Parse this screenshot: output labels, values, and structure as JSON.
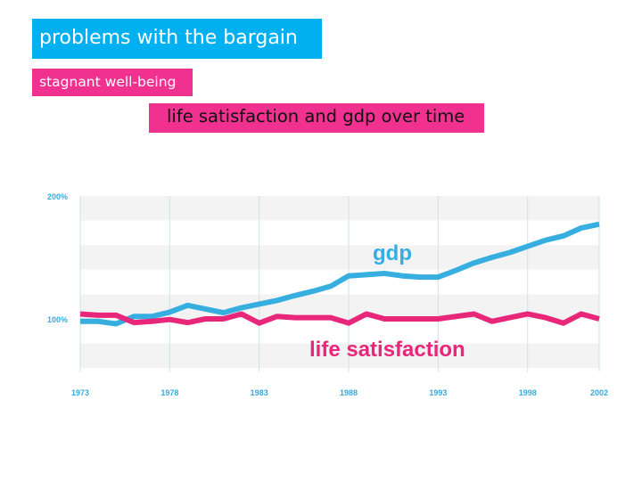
{
  "slide": {
    "title": "problems with the bargain",
    "subtitle": "stagnant well-being",
    "chart_heading": "life satisfaction and gdp over time"
  },
  "colors": {
    "title_bg": "#00b0f0",
    "accent_pink": "#f0318f",
    "gdp": "#36aee0",
    "life_satisfaction": "#e8277a",
    "axis_text": "#3aa9dc"
  },
  "chart_data": {
    "type": "line",
    "title": "life satisfaction and gdp over time",
    "xlabel": "",
    "ylabel": "",
    "xlim": [
      1973,
      2002
    ],
    "ylim": [
      57,
      200
    ],
    "x_ticks": [
      1973,
      1978,
      1983,
      1988,
      1993,
      1998,
      2002
    ],
    "x_tick_labels": [
      "1973",
      "1978",
      "1983",
      "1988",
      "1993",
      "1998",
      "2002"
    ],
    "y_ticks": [
      100,
      200
    ],
    "y_tick_labels": [
      "100%",
      "200%"
    ],
    "grid": "vertical lines at x ticks, alternating horizontal bands",
    "legend": "inline labels",
    "x": [
      1973,
      1974,
      1975,
      1976,
      1977,
      1978,
      1979,
      1980,
      1981,
      1982,
      1983,
      1984,
      1985,
      1986,
      1987,
      1988,
      1989,
      1990,
      1991,
      1992,
      1993,
      1994,
      1995,
      1996,
      1997,
      1998,
      1999,
      2000,
      2001,
      2002
    ],
    "series": [
      {
        "name": "gdp",
        "values": [
          98,
          98,
          96,
          102,
          102,
          105.5,
          111,
          108,
          105,
          109,
          112,
          115,
          119,
          122.5,
          126.6,
          135,
          136,
          137,
          135,
          134,
          134,
          139.5,
          145.5,
          150,
          154,
          159,
          164,
          167.5,
          174,
          177
        ]
      },
      {
        "name": "life satisfaction",
        "values": [
          104,
          103,
          103,
          97,
          98,
          99.5,
          97,
          100,
          100,
          104,
          96.6,
          102,
          101,
          101,
          101,
          96.6,
          104,
          100,
          100,
          100,
          100,
          102,
          104,
          98,
          101,
          104,
          101,
          96.6,
          104,
          100
        ]
      }
    ]
  }
}
